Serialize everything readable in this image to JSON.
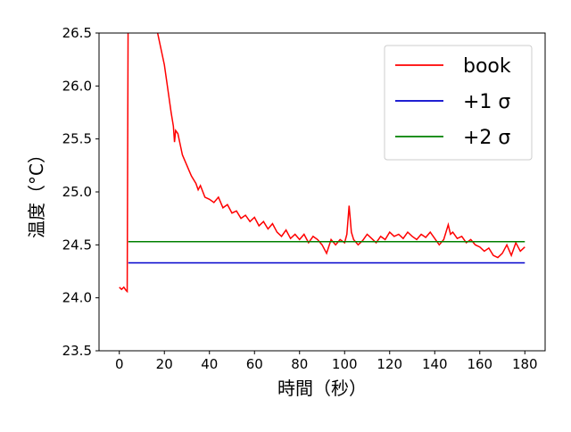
{
  "chart_data": {
    "type": "line",
    "x_label": "時間（秒）",
    "y_label": "温度（°C）",
    "xlim": [
      -9,
      189
    ],
    "ylim": [
      23.5,
      26.5
    ],
    "xticks": [
      0,
      20,
      40,
      60,
      80,
      100,
      120,
      140,
      160,
      180
    ],
    "yticks": [
      23.5,
      {
        "value": 24,
        "label": "24.0"
      },
      24.5,
      {
        "value": 25,
        "label": "25.0"
      },
      25.5,
      {
        "value": 26,
        "label": "26.0"
      },
      26.5
    ],
    "legend": "upper right",
    "series": [
      {
        "name": "book",
        "color": "#ff0000",
        "x": [
          0,
          1,
          2,
          3,
          3.5,
          4,
          17,
          18,
          19,
          20,
          21,
          22,
          23,
          24,
          24.5,
          25,
          26,
          27,
          28,
          29,
          30,
          31,
          32,
          34,
          35,
          36,
          38,
          40,
          42,
          44,
          46,
          48,
          50,
          52,
          54,
          56,
          58,
          60,
          62,
          64,
          66,
          68,
          70,
          72,
          74,
          76,
          78,
          80,
          82,
          84,
          86,
          88,
          90,
          92,
          94,
          96,
          98,
          100,
          101,
          102,
          103,
          104,
          106,
          108,
          110,
          112,
          114,
          116,
          118,
          120,
          122,
          124,
          126,
          128,
          130,
          132,
          134,
          136,
          138,
          140,
          142,
          144,
          146,
          147,
          148,
          150,
          152,
          154,
          156,
          158,
          160,
          162,
          164,
          166,
          168,
          170,
          172,
          174,
          176,
          178,
          180
        ],
        "values": [
          24.1,
          24.08,
          24.1,
          24.07,
          24.06,
          27.2,
          26.5,
          26.4,
          26.3,
          26.2,
          26.05,
          25.9,
          25.75,
          25.62,
          25.47,
          25.58,
          25.55,
          25.45,
          25.35,
          25.3,
          25.25,
          25.2,
          25.15,
          25.08,
          25.02,
          25.06,
          24.95,
          24.93,
          24.9,
          24.95,
          24.85,
          24.88,
          24.8,
          24.82,
          24.75,
          24.78,
          24.72,
          24.76,
          24.68,
          24.72,
          24.65,
          24.7,
          24.62,
          24.58,
          24.64,
          24.56,
          24.6,
          24.55,
          24.6,
          24.52,
          24.58,
          24.55,
          24.5,
          24.42,
          24.55,
          24.5,
          24.55,
          24.52,
          24.6,
          24.87,
          24.62,
          24.55,
          24.5,
          24.54,
          24.6,
          24.56,
          24.52,
          24.58,
          24.55,
          24.62,
          24.58,
          24.6,
          24.56,
          24.62,
          24.58,
          24.55,
          24.6,
          24.57,
          24.62,
          24.56,
          24.5,
          24.55,
          24.69,
          24.6,
          24.62,
          24.56,
          24.58,
          24.52,
          24.55,
          24.5,
          24.48,
          24.44,
          24.47,
          24.4,
          24.38,
          24.42,
          24.5,
          24.4,
          24.52,
          24.44,
          24.48
        ]
      },
      {
        "name": "+1 σ",
        "color": "#0000cc",
        "x": [
          4,
          180
        ],
        "values": [
          24.33,
          24.33
        ]
      },
      {
        "name": "+2 σ",
        "color": "#008000",
        "x": [
          4,
          180
        ],
        "values": [
          24.53,
          24.53
        ]
      }
    ]
  }
}
